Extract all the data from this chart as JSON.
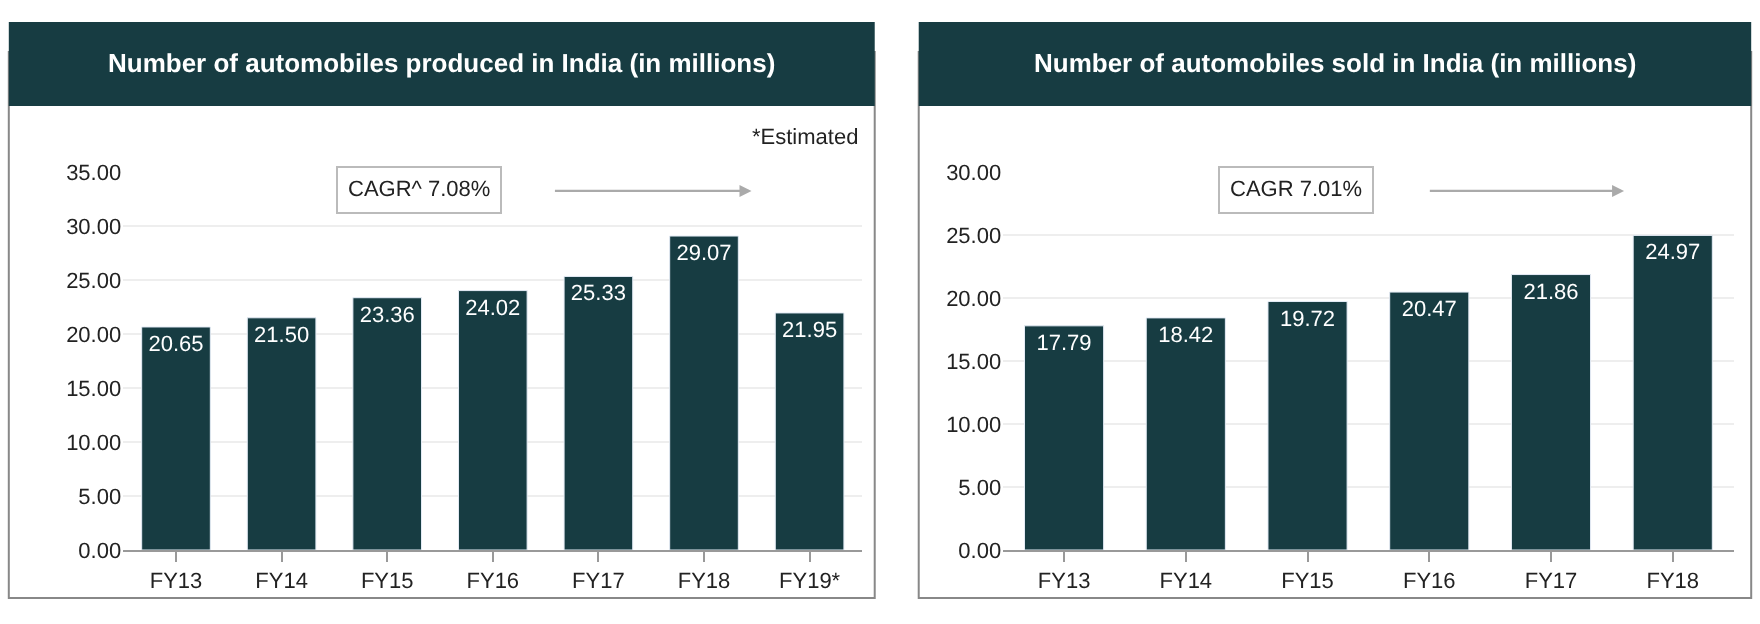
{
  "chart_data": [
    {
      "type": "bar",
      "title": "Number of automobiles produced in India (in millions)",
      "categories": [
        "FY13",
        "FY14",
        "FY15",
        "FY16",
        "FY17",
        "FY18",
        "FY19*"
      ],
      "values": [
        20.65,
        21.5,
        23.36,
        24.02,
        25.33,
        29.07,
        21.95
      ],
      "value_labels": [
        "20.65",
        "21.50",
        "23.36",
        "24.02",
        "25.33",
        "29.07",
        "21.95"
      ],
      "color": "#173c42",
      "ylim": [
        0,
        35
      ],
      "yticks": [
        {
          "value": 0,
          "label": "0.00"
        },
        {
          "value": 5,
          "label": "5.00"
        },
        {
          "value": 10,
          "label": "10.00"
        },
        {
          "value": 15,
          "label": "15.00"
        },
        {
          "value": 20,
          "label": "20.00"
        },
        {
          "value": 25,
          "label": "25.00"
        },
        {
          "value": 30,
          "label": "30.00"
        },
        {
          "value": 35,
          "label": "35.00"
        }
      ],
      "grid": "y",
      "annotations": [
        "*Estimated",
        "CAGR^ 7.08%"
      ]
    },
    {
      "type": "bar",
      "title": "Number of automobiles sold in India (in millions)",
      "categories": [
        "FY13",
        "FY14",
        "FY15",
        "FY16",
        "FY17",
        "FY18"
      ],
      "values": [
        17.79,
        18.42,
        19.72,
        20.47,
        21.86,
        24.97
      ],
      "value_labels": [
        "17.79",
        "18.42",
        "19.72",
        "20.47",
        "21.86",
        "24.97"
      ],
      "color": "#173c42",
      "ylim": [
        0,
        30
      ],
      "yticks": [
        {
          "value": 0,
          "label": "0.00"
        },
        {
          "value": 5,
          "label": "5.00"
        },
        {
          "value": 10,
          "label": "10.00"
        },
        {
          "value": 15,
          "label": "15.00"
        },
        {
          "value": 20,
          "label": "20.00"
        },
        {
          "value": 25,
          "label": "25.00"
        },
        {
          "value": 30,
          "label": "30.00"
        }
      ],
      "grid": "y",
      "annotations": [
        "CAGR 7.01%"
      ]
    }
  ]
}
